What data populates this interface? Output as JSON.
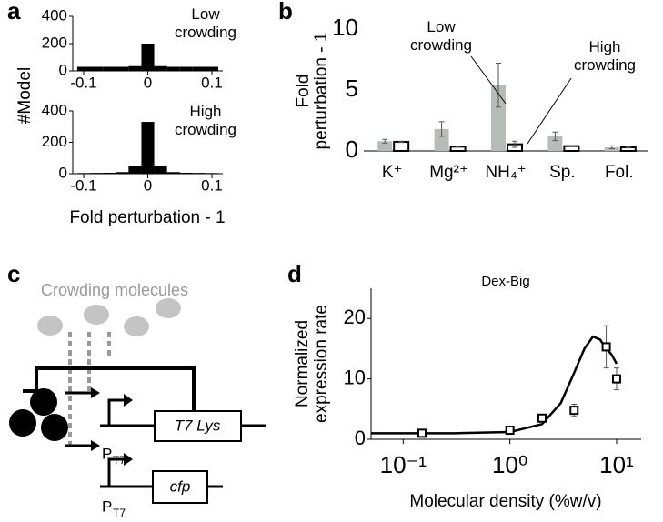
{
  "panel_labels": [
    "a",
    "b",
    "c",
    "d"
  ],
  "chart_data": [
    {
      "type": "histogram",
      "annotation": "Low crowding",
      "ylabel": "#Model",
      "bins": [
        -0.11,
        -0.09,
        -0.07,
        -0.05,
        -0.03,
        -0.01,
        0.01,
        0.03,
        0.05,
        0.07,
        0.09,
        0.11
      ],
      "values": [
        30,
        30,
        30,
        30,
        35,
        200,
        35,
        30,
        30,
        30,
        30
      ],
      "color": "#000000",
      "xlim": [
        -0.1,
        0.1
      ],
      "xticks": [
        -0.1,
        0,
        0.1
      ],
      "ylim": [
        0,
        400
      ],
      "yticks": [
        0,
        200,
        400
      ]
    },
    {
      "type": "histogram",
      "annotation": "High crowding",
      "xlabel": "Fold perturbation - 1",
      "bins": [
        -0.11,
        -0.09,
        -0.07,
        -0.05,
        -0.03,
        -0.01,
        0.01,
        0.03,
        0.05,
        0.07,
        0.09,
        0.11
      ],
      "values": [
        4,
        5,
        6,
        10,
        50,
        330,
        50,
        10,
        6,
        5,
        4
      ],
      "color": "#000000",
      "xlim": [
        -0.1,
        0.1
      ],
      "xticks": [
        -0.1,
        0,
        0.1
      ],
      "ylim": [
        0,
        400
      ],
      "yticks": [
        0,
        200,
        400
      ]
    },
    {
      "type": "bar",
      "ylabel": [
        "Fold",
        "perturbation - 1"
      ],
      "categories": [
        "K⁺",
        "Mg²⁺",
        "NH₄⁺",
        "Sp.",
        "Fol."
      ],
      "series": [
        {
          "name": "Low crowding",
          "color": "#b8bcb8",
          "values": [
            0.8,
            1.8,
            5.4,
            1.2,
            0.3
          ],
          "errors": [
            0.15,
            0.6,
            1.8,
            0.35,
            0.12
          ]
        },
        {
          "name": "High crowding",
          "color": "#ffffff",
          "values": [
            0.75,
            0.35,
            0.55,
            0.4,
            0.3
          ],
          "errors": [
            0.05,
            0.05,
            0.25,
            0.05,
            0.05
          ]
        }
      ],
      "ylim": [
        0,
        10
      ],
      "yticks": [
        0,
        5,
        10
      ]
    },
    {
      "type": "scatter",
      "title": "Dex-Big",
      "ylabel": [
        "Normalized",
        "expression rate"
      ],
      "xlabel": "Molecular density (%w/v)",
      "x": [
        0.15,
        1,
        2,
        4,
        8,
        10
      ],
      "values": [
        1,
        1.5,
        3.5,
        4.8,
        15.3,
        10
      ],
      "errors": [
        0.2,
        0.3,
        0.4,
        1,
        3.5,
        1.8
      ],
      "fit": {
        "x": [
          0.05,
          0.1,
          0.3,
          1,
          2,
          3,
          4,
          5,
          6,
          7,
          8,
          9,
          10
        ],
        "values": [
          1,
          1,
          1,
          1.2,
          2.5,
          6,
          11,
          15,
          17,
          16.5,
          15,
          14,
          12.5
        ]
      },
      "log_x": true,
      "xlim": [
        0.05,
        17
      ],
      "xticks": [
        {
          "value": 0.1,
          "label": "10⁻¹"
        },
        {
          "value": 1,
          "label": "10⁰"
        },
        {
          "value": 10,
          "label": "10¹"
        }
      ],
      "ylim": [
        0,
        25
      ],
      "yticks": [
        0,
        10,
        20
      ]
    }
  ],
  "diagram": {
    "label": "Crowding molecules",
    "genes": [
      "T7 Lys",
      "cfp"
    ],
    "promoters": [
      {
        "main": "P",
        "sub": "T7"
      },
      {
        "main": "P",
        "sub": "T7"
      }
    ]
  }
}
